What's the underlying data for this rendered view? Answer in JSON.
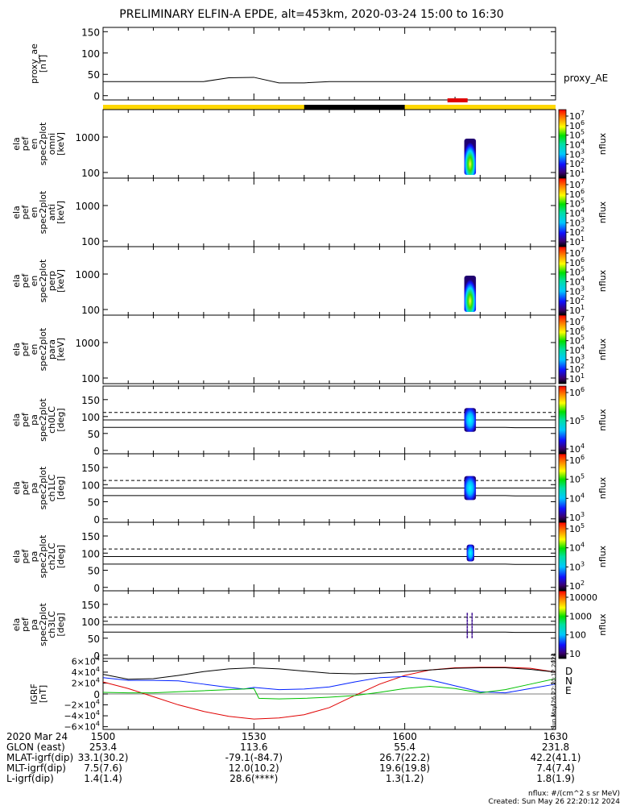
{
  "title": "PRELIMINARY ELFIN-A EPDE, alt=453km, 2020-03-24 15:00 to 16:30",
  "chart_data": [
    {
      "type": "line",
      "panel": "proxy_ae",
      "ylabel_lines": [
        "proxy_ae",
        "[nT]"
      ],
      "yticks": [
        "150",
        "100",
        "50",
        "0"
      ],
      "ylim": [
        -10,
        160
      ],
      "series": [
        {
          "name": "proxy_AE",
          "color": "#000000",
          "x": [
            0,
            20,
            25,
            30,
            35,
            40,
            45,
            50,
            60,
            70,
            80,
            90
          ],
          "y": [
            33,
            33,
            42,
            43,
            30,
            30,
            33,
            33,
            33,
            33,
            33,
            33
          ]
        }
      ]
    },
    {
      "type": "heatmap",
      "panel": "en_omni",
      "ylabel_lines": [
        "ela",
        "pef",
        "en",
        "spec2plot",
        "omni",
        "[keV]"
      ],
      "yticks": [
        "1000",
        "100"
      ],
      "scale": "log",
      "colorbar_ticks": [
        "10^7",
        "10^6",
        "10^5",
        "10^4",
        "10^3",
        "10^2",
        "10^1"
      ],
      "colorbar_label": "nflux",
      "active_interval_min": [
        72,
        74
      ]
    },
    {
      "type": "heatmap",
      "panel": "en_anti",
      "ylabel_lines": [
        "ela",
        "pef",
        "en",
        "spec2plot",
        "anti",
        "[keV]"
      ],
      "yticks": [
        "1000",
        "100"
      ],
      "scale": "log",
      "colorbar_ticks": [
        "10^7",
        "10^6",
        "10^5",
        "10^4",
        "10^3",
        "10^2",
        "10^1"
      ],
      "colorbar_label": "nflux"
    },
    {
      "type": "heatmap",
      "panel": "en_perp",
      "ylabel_lines": [
        "ela",
        "pef",
        "en",
        "spec2plot",
        "perp",
        "[keV]"
      ],
      "yticks": [
        "1000",
        "100"
      ],
      "scale": "log",
      "colorbar_ticks": [
        "10^7",
        "10^6",
        "10^5",
        "10^4",
        "10^3",
        "10^2",
        "10^1"
      ],
      "colorbar_label": "nflux",
      "active_interval_min": [
        72,
        74
      ]
    },
    {
      "type": "heatmap",
      "panel": "en_para",
      "ylabel_lines": [
        "ela",
        "pef",
        "en",
        "spec2plot",
        "para",
        "[keV]"
      ],
      "yticks": [
        "1000",
        "100"
      ],
      "scale": "log",
      "colorbar_ticks": [
        "10^7",
        "10^6",
        "10^5",
        "10^4",
        "10^3",
        "10^2",
        "10^1"
      ],
      "colorbar_label": "nflux"
    },
    {
      "type": "heatmap",
      "panel": "pa_ch0LC",
      "ylabel_lines": [
        "ela",
        "pef",
        "pa",
        "spec2plot",
        "ch0LC",
        "[deg]"
      ],
      "yticks": [
        "150",
        "100",
        "50",
        "0"
      ],
      "ylim": [
        -10,
        190
      ],
      "colorbar_ticks": [
        "10^6",
        "10^5",
        "10^4"
      ],
      "colorbar_label": "nflux",
      "reference_lines_deg": [
        112,
        90,
        68
      ],
      "active_interval_min": [
        72,
        74
      ]
    },
    {
      "type": "heatmap",
      "panel": "pa_ch1LC",
      "ylabel_lines": [
        "ela",
        "pef",
        "pa",
        "spec2plot",
        "ch1LC",
        "[deg]"
      ],
      "yticks": [
        "150",
        "100",
        "50",
        "0"
      ],
      "ylim": [
        -10,
        190
      ],
      "colorbar_ticks": [
        "10^6",
        "10^5",
        "10^4",
        "10^3"
      ],
      "colorbar_label": "nflux",
      "reference_lines_deg": [
        112,
        90,
        68
      ],
      "active_interval_min": [
        72,
        74
      ]
    },
    {
      "type": "heatmap",
      "panel": "pa_ch2LC",
      "ylabel_lines": [
        "ela",
        "pef",
        "pa",
        "spec2plot",
        "ch2LC",
        "[deg]"
      ],
      "yticks": [
        "150",
        "100",
        "50",
        "0"
      ],
      "ylim": [
        -10,
        190
      ],
      "colorbar_ticks": [
        "10^5",
        "10^4",
        "10^3",
        "10^2"
      ],
      "colorbar_label": "nflux",
      "reference_lines_deg": [
        112,
        90,
        68
      ],
      "active_interval_min": [
        72,
        74
      ]
    },
    {
      "type": "heatmap",
      "panel": "pa_ch3LC",
      "ylabel_lines": [
        "ela",
        "pef",
        "pa",
        "spec2plot",
        "ch3LC",
        "[deg]"
      ],
      "yticks": [
        "150",
        "100",
        "50",
        "0"
      ],
      "ylim": [
        -10,
        190
      ],
      "colorbar_ticks": [
        "10000",
        "1000",
        "100",
        "10"
      ],
      "colorbar_label": "nflux",
      "reference_lines_deg": [
        112,
        90,
        68
      ],
      "active_interval_min": [
        72,
        74
      ]
    },
    {
      "type": "line",
      "panel": "IGRF",
      "ylabel_lines": [
        "IGRF",
        "[nT]"
      ],
      "yticks": [
        "6×10^4",
        "4×10^4",
        "2×10^4",
        "0",
        "−2×10^4",
        "−4×10^4",
        "−6×10^4"
      ],
      "ylim": [
        -65000,
        65000
      ],
      "series": [
        {
          "name": "D",
          "color": "#e00000",
          "x": [
            0,
            5,
            10,
            15,
            20,
            25,
            30,
            35,
            40,
            45,
            50,
            55,
            60,
            65,
            70,
            75,
            80,
            85,
            90
          ],
          "y": [
            22000,
            10000,
            -5000,
            -20000,
            -32000,
            -41000,
            -46000,
            -44000,
            -38000,
            -25000,
            -3000,
            18000,
            34000,
            44000,
            48000,
            49000,
            49000,
            47000,
            40000
          ]
        },
        {
          "name": "N",
          "color": "#0020ff",
          "x": [
            0,
            5,
            10,
            15,
            20,
            25,
            28,
            30,
            35,
            40,
            45,
            50,
            55,
            60,
            65,
            70,
            75,
            80,
            85,
            90
          ],
          "y": [
            30000,
            25000,
            25000,
            24000,
            18000,
            12000,
            9000,
            12000,
            8000,
            9000,
            13000,
            22000,
            30000,
            32000,
            26000,
            15000,
            4000,
            2000,
            10000,
            18000
          ]
        },
        {
          "name": "E",
          "color": "#00c000",
          "x": [
            0,
            5,
            10,
            15,
            20,
            25,
            30,
            31,
            35,
            40,
            45,
            50,
            55,
            60,
            65,
            70,
            75,
            80,
            85,
            90
          ],
          "y": [
            3000,
            2000,
            2000,
            4000,
            6000,
            8000,
            10000,
            -8000,
            -9000,
            -8000,
            -6000,
            -3000,
            3000,
            10000,
            14000,
            10000,
            2000,
            8000,
            18000,
            28000
          ]
        },
        {
          "name": "",
          "color": "#000000",
          "x": [
            0,
            5,
            10,
            15,
            20,
            25,
            30,
            35,
            40,
            45,
            50,
            55,
            60,
            65,
            70,
            75,
            80,
            85,
            90
          ],
          "y": [
            36000,
            27000,
            28000,
            34000,
            41000,
            46000,
            48000,
            46000,
            42000,
            38000,
            37000,
            38000,
            41000,
            44000,
            47000,
            48000,
            48000,
            45000,
            40000
          ]
        }
      ],
      "legend": [
        "D",
        "N",
        "E"
      ]
    }
  ],
  "bottom_table": {
    "row_labels": [
      "2020 Mar 24",
      "GLON (east)",
      "MLAT-igrf(dip)",
      "MLT-igrf(dip)",
      "L-igrf(dip)"
    ],
    "columns": [
      {
        "tick": "1500",
        "vals": [
          "253.4",
          "33.1(30.2)",
          "7.5(7.6)",
          "1.4(1.4)"
        ]
      },
      {
        "tick": "1530",
        "vals": [
          "113.6",
          "-79.1(-84.7)",
          "12.0(10.2)",
          "28.6(****)"
        ]
      },
      {
        "tick": "1600",
        "vals": [
          "55.4",
          "26.7(22.2)",
          "19.6(19.8)",
          "1.3(1.2)"
        ]
      },
      {
        "tick": "1630",
        "vals": [
          "231.8",
          "42.2(41.1)",
          "7.4(7.4)",
          "1.8(1.9)"
        ]
      }
    ]
  },
  "footer": {
    "units": "nflux: #/(cm^2 s sr MeV)",
    "created": "Created: Sun May 26 22:20:12 2024",
    "side_stamp": "Sun May 26 22:20:12 2024"
  }
}
